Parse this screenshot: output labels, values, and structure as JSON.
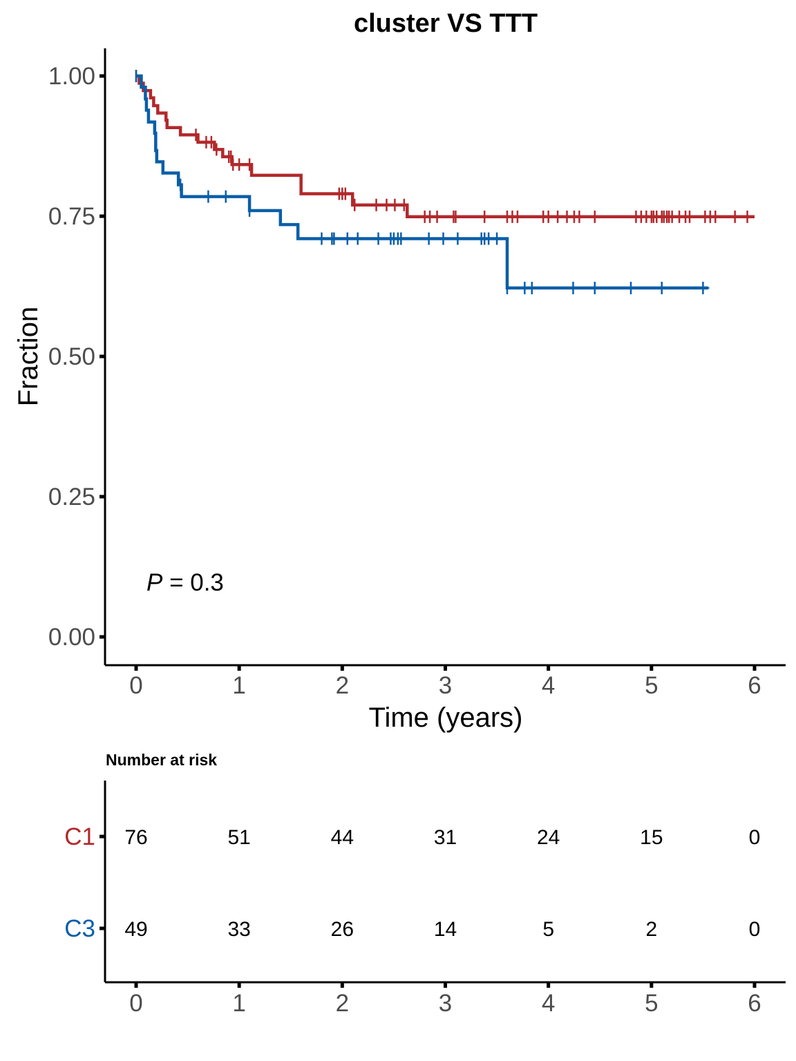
{
  "chart_data": {
    "type": "line",
    "subtype": "kaplan-meier",
    "title": "cluster VS TTT",
    "xlabel": "Time (years)",
    "ylabel": "Fraction",
    "xlim": [
      0,
      6
    ],
    "ylim": [
      0,
      1
    ],
    "x_ticks": [
      "0",
      "1",
      "2",
      "3",
      "4",
      "5",
      "6"
    ],
    "y_ticks": [
      "0.00",
      "0.25",
      "0.50",
      "0.75",
      "1.00"
    ],
    "grid": false,
    "annotation": {
      "p_label": "P",
      "p_rest": " = 0.3"
    },
    "series": [
      {
        "name": "C1",
        "color": "#B2282B",
        "steps": [
          [
            0,
            1.0
          ],
          [
            0.03,
            0.987
          ],
          [
            0.07,
            0.974
          ],
          [
            0.14,
            0.961
          ],
          [
            0.17,
            0.947
          ],
          [
            0.21,
            0.934
          ],
          [
            0.29,
            0.921
          ],
          [
            0.3,
            0.908
          ],
          [
            0.43,
            0.895
          ],
          [
            0.6,
            0.882
          ],
          [
            0.76,
            0.869
          ],
          [
            0.84,
            0.856
          ],
          [
            0.93,
            0.842
          ],
          [
            1.12,
            0.823
          ],
          [
            1.6,
            0.79
          ],
          [
            2.1,
            0.77
          ],
          [
            2.63,
            0.749
          ],
          [
            6.0,
            0.749
          ]
        ],
        "censor_times": [
          0.0,
          0.58,
          0.68,
          0.73,
          0.78,
          0.9,
          0.92,
          0.94,
          1.0,
          1.1,
          1.97,
          2.0,
          2.03,
          2.12,
          2.33,
          2.43,
          2.51,
          2.6,
          2.8,
          2.85,
          2.92,
          3.08,
          3.1,
          3.38,
          3.6,
          3.65,
          3.7,
          3.95,
          4.0,
          4.09,
          4.18,
          4.25,
          4.3,
          4.45,
          4.85,
          4.9,
          4.95,
          5.0,
          5.02,
          5.05,
          5.1,
          5.12,
          5.15,
          5.17,
          5.2,
          5.27,
          5.33,
          5.37,
          5.52,
          5.57,
          5.62,
          5.81,
          5.93
        ]
      },
      {
        "name": "C3",
        "color": "#0A5EA8",
        "steps": [
          [
            0,
            1.0
          ],
          [
            0.05,
            0.98
          ],
          [
            0.09,
            0.959
          ],
          [
            0.1,
            0.939
          ],
          [
            0.12,
            0.918
          ],
          [
            0.18,
            0.898
          ],
          [
            0.19,
            0.867
          ],
          [
            0.2,
            0.847
          ],
          [
            0.26,
            0.827
          ],
          [
            0.41,
            0.806
          ],
          [
            0.44,
            0.785
          ],
          [
            1.1,
            0.76
          ],
          [
            1.4,
            0.735
          ],
          [
            1.57,
            0.71
          ],
          [
            3.6,
            0.622
          ],
          [
            5.55,
            0.622
          ]
        ],
        "censor_times": [
          0.0,
          0.43,
          0.7,
          0.87,
          1.1,
          1.8,
          1.9,
          1.92,
          2.05,
          2.15,
          2.35,
          2.47,
          2.5,
          2.54,
          2.57,
          2.84,
          2.98,
          3.12,
          3.35,
          3.38,
          3.42,
          3.5,
          3.6,
          3.77,
          3.84,
          4.24,
          4.45,
          4.8,
          5.1,
          5.5
        ]
      }
    ]
  },
  "risk_table": {
    "title": "Number at risk",
    "times": [
      "0",
      "1",
      "2",
      "3",
      "4",
      "5",
      "6"
    ],
    "rows": [
      {
        "label": "C1",
        "color": "#B2282B",
        "counts": [
          "76",
          "51",
          "44",
          "31",
          "24",
          "15",
          "0"
        ]
      },
      {
        "label": "C3",
        "color": "#0A5EA8",
        "counts": [
          "49",
          "33",
          "26",
          "14",
          "5",
          "2",
          "0"
        ]
      }
    ]
  }
}
